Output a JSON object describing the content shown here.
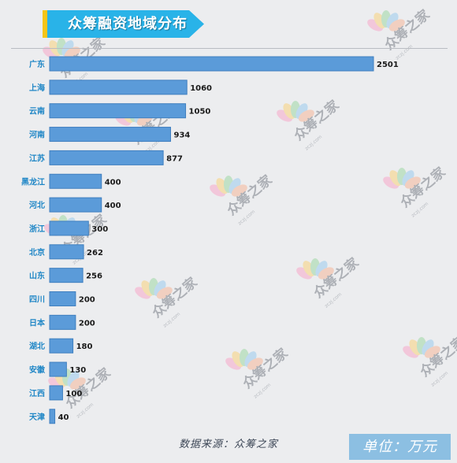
{
  "title": "众筹融资地域分布",
  "footer": {
    "source": "数据来源：众筹之家",
    "unit": "单位：万元"
  },
  "watermark": {
    "text": "众筹之家",
    "subtext": "zczj.com"
  },
  "colors": {
    "bar": "#5b9bd9",
    "banner": "#29b3e8",
    "banner_accent": "#f5c518",
    "unit_box": "#8cbfe2"
  },
  "chart_data": {
    "type": "bar",
    "orientation": "horizontal",
    "title": "众筹融资地域分布",
    "categories": [
      "广东",
      "上海",
      "云南",
      "河南",
      "江苏",
      "黑龙江",
      "河北",
      "浙江",
      "北京",
      "山东",
      "四川",
      "日本",
      "湖北",
      "安徽",
      "江西",
      "天津"
    ],
    "values": [
      2501,
      1060,
      1050,
      934,
      877,
      400,
      400,
      300,
      262,
      256,
      200,
      200,
      180,
      130,
      100,
      40
    ],
    "unit": "万元",
    "xlim": [
      0,
      2501
    ],
    "grid": false,
    "legend": "none"
  }
}
